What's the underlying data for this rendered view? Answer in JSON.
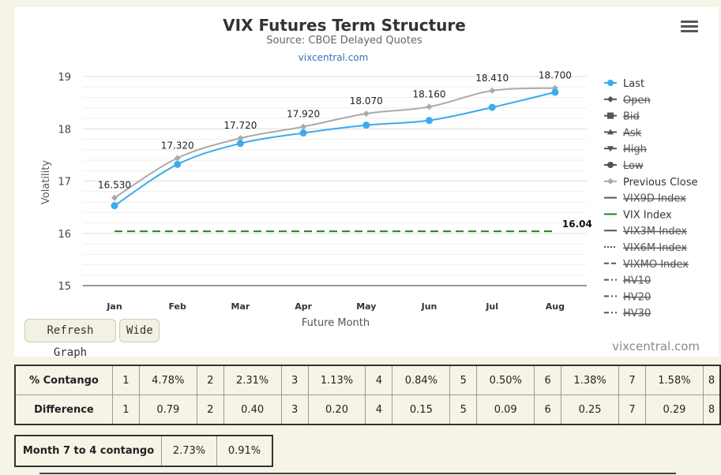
{
  "chart_data": {
    "type": "line",
    "title": "VIX Futures Term Structure",
    "subtitle": "Source: CBOE Delayed Quotes",
    "subtitle_link": "vixcentral.com",
    "xlabel": "Future Month",
    "ylabel": "Volatility",
    "categories": [
      "Jan",
      "Feb",
      "Mar",
      "Apr",
      "May",
      "Jun",
      "Jul",
      "Aug"
    ],
    "ylim": [
      15,
      19
    ],
    "yticks": [
      15,
      16,
      17,
      18,
      19
    ],
    "grid": true,
    "legend_position": "right",
    "series": [
      {
        "name": "Last",
        "values": [
          16.53,
          17.32,
          17.72,
          17.92,
          18.07,
          18.16,
          18.41,
          18.7
        ],
        "labels": [
          "16.530",
          "17.320",
          "17.720",
          "17.920",
          "18.070",
          "18.160",
          "18.410",
          "18.700"
        ],
        "color": "#3aabef",
        "visible": true
      },
      {
        "name": "Previous Close",
        "values": [
          16.68,
          17.44,
          17.82,
          18.04,
          18.29,
          18.42,
          18.73,
          18.78
        ],
        "color": "#aaaaaa",
        "visible": true
      },
      {
        "name": "VIX Index",
        "values": [
          16.04,
          16.04,
          16.04,
          16.04,
          16.04,
          16.04,
          16.04,
          16.04
        ],
        "end_label": "16.04",
        "color": "#1a8a1a",
        "visible": true
      }
    ],
    "legend": [
      {
        "name": "Last",
        "marker": "circle",
        "color": "#3aabef",
        "visible": true
      },
      {
        "name": "Open",
        "marker": "diamond",
        "color": "#555555",
        "visible": false
      },
      {
        "name": "Bid",
        "marker": "square",
        "color": "#555555",
        "visible": false
      },
      {
        "name": "Ask",
        "marker": "triangle",
        "color": "#555555",
        "visible": false
      },
      {
        "name": "High",
        "marker": "triangle-down",
        "color": "#555555",
        "visible": false
      },
      {
        "name": "Low",
        "marker": "circle",
        "color": "#555555",
        "visible": false
      },
      {
        "name": "Previous Close",
        "marker": "diamond",
        "color": "#aaaaaa",
        "visible": true
      },
      {
        "name": "VIX9D Index",
        "marker": "line",
        "color": "#555555",
        "visible": false
      },
      {
        "name": "VIX Index",
        "marker": "line",
        "color": "#1a8a1a",
        "visible": true
      },
      {
        "name": "VIX3M Index",
        "marker": "line",
        "color": "#555555",
        "visible": false
      },
      {
        "name": "VIX6M Index",
        "marker": "dotted",
        "color": "#555555",
        "visible": false
      },
      {
        "name": "VIXMO Index",
        "marker": "dashed",
        "color": "#555555",
        "visible": false
      },
      {
        "name": "HV10",
        "marker": "dashdot",
        "color": "#555555",
        "visible": false
      },
      {
        "name": "HV20",
        "marker": "dashdot",
        "color": "#555555",
        "visible": false
      },
      {
        "name": "HV30",
        "marker": "dashdot",
        "color": "#555555",
        "visible": false
      }
    ]
  },
  "controls": {
    "refresh_label": "Refresh Graph",
    "wide_label": "Wide",
    "menu_icon": "hamburger-menu-icon"
  },
  "brand": "vixcentral.com",
  "contango_table": {
    "rows": [
      {
        "header": "% Contango",
        "cells": [
          "1",
          "4.78%",
          "2",
          "2.31%",
          "3",
          "1.13%",
          "4",
          "0.84%",
          "5",
          "0.50%",
          "6",
          "1.38%",
          "7",
          "1.58%",
          "8"
        ]
      },
      {
        "header": "Difference",
        "cells": [
          "1",
          "0.79",
          "2",
          "0.40",
          "3",
          "0.20",
          "4",
          "0.15",
          "5",
          "0.09",
          "6",
          "0.25",
          "7",
          "0.29",
          "8"
        ]
      }
    ]
  },
  "month_7_to_4": {
    "header": "Month 7 to 4 contango",
    "values": [
      "2.73%",
      "0.91%"
    ]
  }
}
